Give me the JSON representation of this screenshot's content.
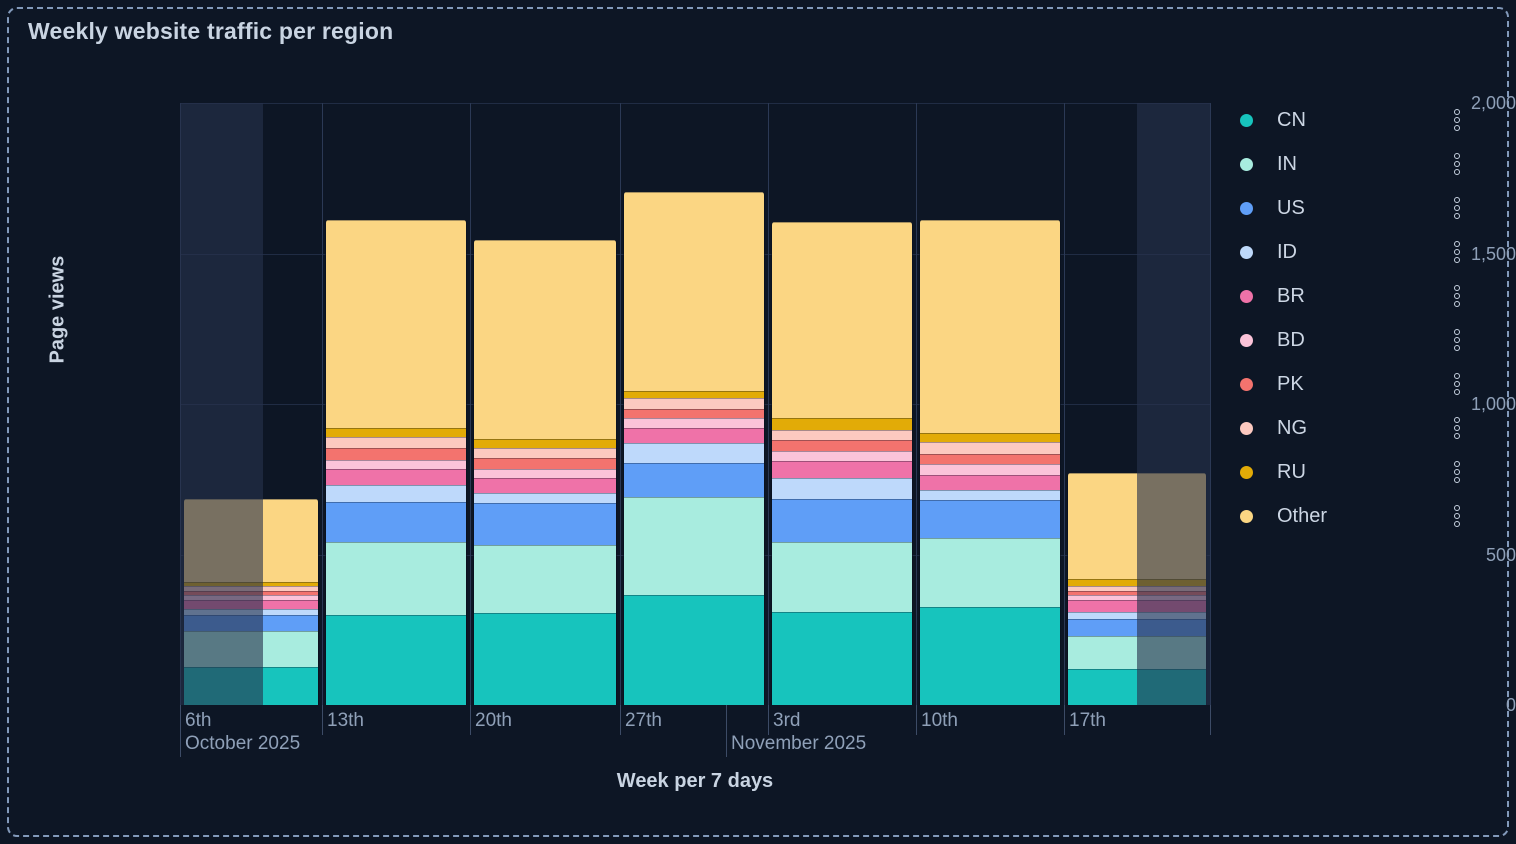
{
  "title": "Weekly website traffic per region",
  "y_axis": {
    "label": "Page views",
    "ticks": [
      "0",
      "500",
      "1,000",
      "1,500",
      "2,000"
    ]
  },
  "x_axis": {
    "label": "Week per 7 days",
    "week_ticks": [
      "6th",
      "13th",
      "20th",
      "27th",
      "3rd",
      "10th",
      "17th"
    ],
    "month_labels": [
      "October 2025",
      "November 2025"
    ]
  },
  "legend": [
    {
      "label": "CN",
      "color": "#17c4bd"
    },
    {
      "label": "IN",
      "color": "#a8ecdf"
    },
    {
      "label": "US",
      "color": "#5f9ef7"
    },
    {
      "label": "ID",
      "color": "#bed9fb"
    },
    {
      "label": "BR",
      "color": "#ef72a8"
    },
    {
      "label": "BD",
      "color": "#fbc3d9"
    },
    {
      "label": "PK",
      "color": "#f3736e"
    },
    {
      "label": "NG",
      "color": "#fcc9c0"
    },
    {
      "label": "RU",
      "color": "#e2ab07"
    },
    {
      "label": "Other",
      "color": "#fbd683"
    }
  ],
  "chart_data": {
    "type": "bar",
    "stacked": true,
    "title": "Weekly website traffic per region",
    "xlabel": "Week per 7 days",
    "ylabel": "Page views",
    "ylim": [
      0,
      2000
    ],
    "grid": true,
    "legend_position": "right",
    "categories": [
      "Oct 6",
      "Oct 13",
      "Oct 20",
      "Oct 27",
      "Nov 3",
      "Nov 10",
      "Nov 17"
    ],
    "series": [
      {
        "name": "CN",
        "color": "#17c4bd",
        "values": [
          125,
          300,
          305,
          365,
          310,
          325,
          120
        ]
      },
      {
        "name": "IN",
        "color": "#a8ecdf",
        "values": [
          120,
          240,
          225,
          325,
          230,
          230,
          110
        ]
      },
      {
        "name": "US",
        "color": "#5f9ef7",
        "values": [
          55,
          135,
          140,
          115,
          145,
          125,
          55
        ]
      },
      {
        "name": "ID",
        "color": "#bed9fb",
        "values": [
          20,
          55,
          35,
          65,
          70,
          35,
          25
        ]
      },
      {
        "name": "BR",
        "color": "#ef72a8",
        "values": [
          30,
          55,
          50,
          50,
          55,
          50,
          40
        ]
      },
      {
        "name": "BD",
        "color": "#fbc3d9",
        "values": [
          15,
          30,
          30,
          35,
          35,
          35,
          15
        ]
      },
      {
        "name": "PK",
        "color": "#f3736e",
        "values": [
          15,
          40,
          35,
          30,
          35,
          35,
          15
        ]
      },
      {
        "name": "NG",
        "color": "#fcc9c0",
        "values": [
          15,
          35,
          35,
          35,
          35,
          40,
          15
        ]
      },
      {
        "name": "RU",
        "color": "#e2ab07",
        "values": [
          15,
          30,
          30,
          25,
          40,
          30,
          25
        ]
      },
      {
        "name": "Other",
        "color": "#fbd683",
        "values": [
          275,
          690,
          660,
          660,
          650,
          705,
          350
        ]
      }
    ],
    "approx_totals": [
      685,
      1610,
      1545,
      1705,
      1605,
      1610,
      770
    ],
    "unselected_overlay_fractions": [
      [
        0,
        0.0806
      ],
      [
        0.9291,
        1.0
      ]
    ]
  }
}
